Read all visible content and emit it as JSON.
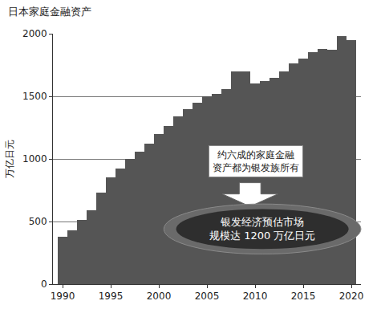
{
  "chart_data": {
    "type": "bar",
    "title": "日本家庭金融资产",
    "ylabel": "万亿日元",
    "x": [
      1990,
      1991,
      1992,
      1993,
      1994,
      1995,
      1996,
      1997,
      1998,
      1999,
      2000,
      2001,
      2002,
      2003,
      2004,
      2005,
      2006,
      2007,
      2008,
      2009,
      2010,
      2011,
      2012,
      2013,
      2014,
      2015,
      2016,
      2017,
      2018,
      2019,
      2020
    ],
    "values": [
      380,
      430,
      510,
      590,
      730,
      850,
      920,
      1000,
      1060,
      1120,
      1200,
      1260,
      1340,
      1400,
      1450,
      1500,
      1520,
      1560,
      1700,
      1700,
      1600,
      1620,
      1650,
      1700,
      1760,
      1800,
      1850,
      1880,
      1870,
      1980,
      1950
    ],
    "color": "#555555",
    "xlim": [
      1989,
      2021
    ],
    "xticks": [
      1990,
      1995,
      2000,
      2005,
      2010,
      2015,
      2020
    ],
    "ylim": [
      0,
      2000
    ],
    "yticks": [
      0,
      500,
      1000,
      1500,
      2000
    ],
    "grid": true,
    "annotations": [
      "约六成的家庭金融\n资产都为银发族所有",
      "银发经济预估市场\n规模达 1200 万亿日元"
    ]
  }
}
